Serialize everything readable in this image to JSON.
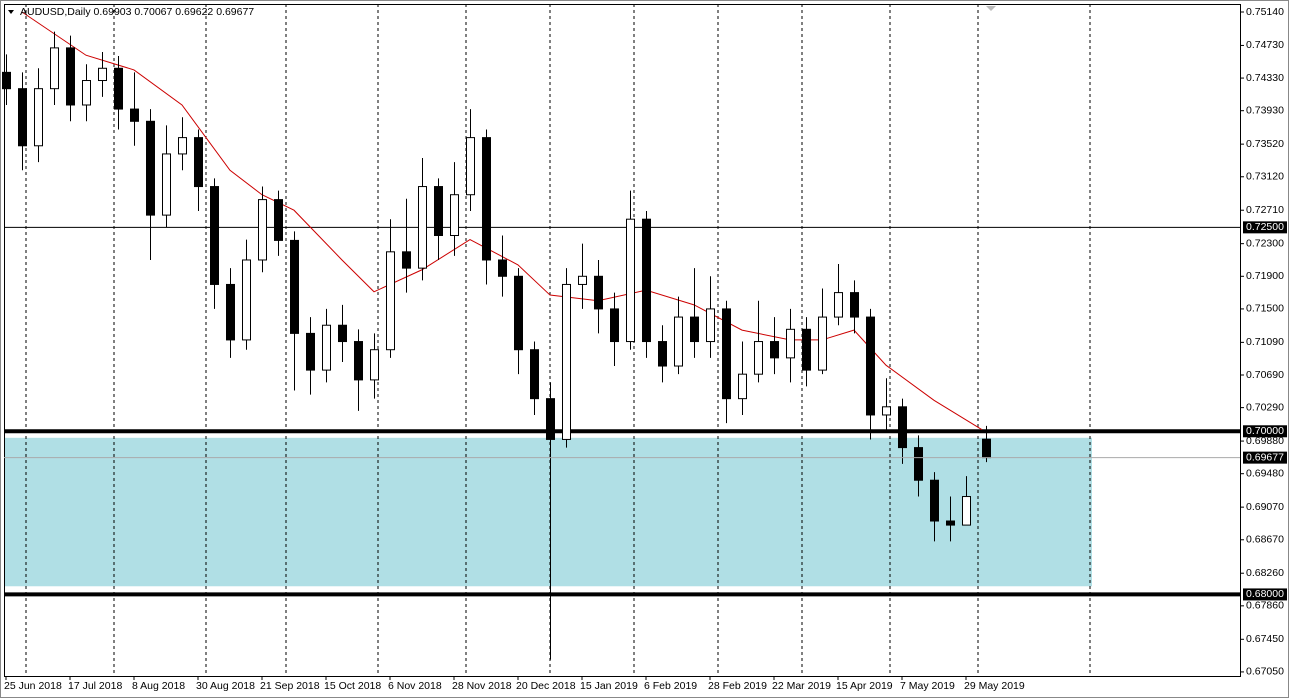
{
  "chart_data": {
    "type": "candlestick",
    "symbol": "AUDUSD,Daily",
    "ohlc": [
      0.69903,
      0.70067,
      0.69622,
      0.69677
    ],
    "xlim": [
      -0.5,
      308.5
    ],
    "ylim": [
      0.67,
      0.75238
    ],
    "yticks": [
      {
        "value": 0.7514,
        "label": "0.75140"
      },
      {
        "value": 0.7473,
        "label": "0.74730"
      },
      {
        "value": 0.7433,
        "label": "0.74330"
      },
      {
        "value": 0.7393,
        "label": "0.73930"
      },
      {
        "value": 0.7352,
        "label": "0.73520"
      },
      {
        "value": 0.7312,
        "label": "0.73120"
      },
      {
        "value": 0.7271,
        "label": "0.72710"
      },
      {
        "value": 0.723,
        "label": "0.72300"
      },
      {
        "value": 0.719,
        "label": "0.71900"
      },
      {
        "value": 0.715,
        "label": "0.71500"
      },
      {
        "value": 0.7109,
        "label": "0.71090"
      },
      {
        "value": 0.7069,
        "label": "0.70690"
      },
      {
        "value": 0.7029,
        "label": "0.70290"
      },
      {
        "value": 0.6988,
        "label": "0.69880"
      },
      {
        "value": 0.6948,
        "label": "0.69480"
      },
      {
        "value": 0.6907,
        "label": "0.69070"
      },
      {
        "value": 0.6867,
        "label": "0.68670"
      },
      {
        "value": 0.6826,
        "label": "0.68260"
      },
      {
        "value": 0.6786,
        "label": "0.67860"
      },
      {
        "value": 0.6745,
        "label": "0.67450"
      },
      {
        "value": 0.6705,
        "label": "0.67050"
      }
    ],
    "xticks": [
      {
        "value": 0,
        "label": "25 Jun 2018"
      },
      {
        "value": 16,
        "label": "17 Jul 2018"
      },
      {
        "value": 32,
        "label": "8 Aug 2018"
      },
      {
        "value": 48,
        "label": "30 Aug 2018"
      },
      {
        "value": 64,
        "label": "21 Sep 2018"
      },
      {
        "value": 80,
        "label": "15 Oct 2018"
      },
      {
        "value": 96,
        "label": "6 Nov 2018"
      },
      {
        "value": 112,
        "label": "28 Nov 2018"
      },
      {
        "value": 128,
        "label": "20 Dec 2018"
      },
      {
        "value": 144,
        "label": "15 Jan 2019"
      },
      {
        "value": 160,
        "label": "6 Feb 2019"
      },
      {
        "value": 176,
        "label": "28 Feb 2019"
      },
      {
        "value": 192,
        "label": "22 Mar 2019"
      },
      {
        "value": 208,
        "label": "15 Apr 2019"
      },
      {
        "value": 224,
        "label": "7 May 2019"
      },
      {
        "value": 240,
        "label": "29 May 2019"
      }
    ],
    "xgrid": [
      5,
      27,
      50,
      70,
      93,
      115,
      136,
      157,
      178,
      199,
      221,
      243,
      271
    ],
    "grid": true,
    "candles": {
      "x": [
        0,
        4,
        8,
        12,
        16,
        20,
        24,
        28,
        32,
        36,
        40,
        44,
        48,
        52,
        56,
        60,
        64,
        68,
        72,
        76,
        80,
        84,
        88,
        92,
        96,
        100,
        104,
        108,
        112,
        116,
        120,
        124,
        128,
        132,
        136,
        140,
        144,
        148,
        152,
        156,
        160,
        164,
        168,
        172,
        176,
        180,
        184,
        188,
        192,
        196,
        200,
        204,
        208,
        212,
        216,
        220,
        224,
        228,
        232,
        236,
        240,
        245
      ],
      "open": [
        0.744,
        0.742,
        0.735,
        0.742,
        0.747,
        0.74,
        0.743,
        0.7445,
        0.7395,
        0.738,
        0.7265,
        0.734,
        0.736,
        0.73,
        0.718,
        0.7112,
        0.721,
        0.7284,
        0.7234,
        0.712,
        0.7075,
        0.713,
        0.711,
        0.7063,
        0.71,
        0.722,
        0.72,
        0.73,
        0.724,
        0.729,
        0.736,
        0.721,
        0.719,
        0.71,
        0.704,
        0.699,
        0.718,
        0.719,
        0.715,
        0.711,
        0.726,
        0.711,
        0.708,
        0.714,
        0.711,
        0.715,
        0.704,
        0.707,
        0.711,
        0.709,
        0.7125,
        0.7075,
        0.714,
        0.717,
        0.714,
        0.702,
        0.703,
        0.698,
        0.694,
        0.689,
        0.6885,
        0.69903
      ],
      "high": [
        0.7462,
        0.744,
        0.7445,
        0.749,
        0.7485,
        0.745,
        0.7465,
        0.746,
        0.744,
        0.7395,
        0.7375,
        0.7385,
        0.737,
        0.731,
        0.72,
        0.7235,
        0.73,
        0.7295,
        0.7245,
        0.714,
        0.715,
        0.7155,
        0.7125,
        0.712,
        0.726,
        0.7285,
        0.7335,
        0.731,
        0.733,
        0.7395,
        0.737,
        0.724,
        0.72,
        0.711,
        0.706,
        0.72,
        0.723,
        0.721,
        0.717,
        0.7295,
        0.727,
        0.713,
        0.7165,
        0.72,
        0.719,
        0.716,
        0.711,
        0.716,
        0.714,
        0.715,
        0.714,
        0.7175,
        0.7205,
        0.7185,
        0.715,
        0.7065,
        0.704,
        0.6995,
        0.695,
        0.692,
        0.6945,
        0.70067
      ],
      "low": [
        0.74,
        0.732,
        0.733,
        0.74,
        0.738,
        0.738,
        0.741,
        0.737,
        0.735,
        0.721,
        0.725,
        0.732,
        0.727,
        0.715,
        0.709,
        0.71,
        0.7195,
        0.7215,
        0.705,
        0.7045,
        0.706,
        0.7085,
        0.7025,
        0.704,
        0.709,
        0.717,
        0.7185,
        0.721,
        0.7215,
        0.727,
        0.718,
        0.7165,
        0.707,
        0.702,
        0.672,
        0.698,
        0.715,
        0.712,
        0.708,
        0.71,
        0.709,
        0.706,
        0.707,
        0.709,
        0.709,
        0.701,
        0.702,
        0.706,
        0.707,
        0.706,
        0.7055,
        0.707,
        0.713,
        0.712,
        0.699,
        0.7,
        0.696,
        0.692,
        0.6865,
        0.6865,
        0.689,
        0.69622
      ],
      "close": [
        0.742,
        0.735,
        0.742,
        0.747,
        0.74,
        0.743,
        0.7445,
        0.7395,
        0.738,
        0.7265,
        0.734,
        0.736,
        0.73,
        0.718,
        0.7112,
        0.721,
        0.7284,
        0.7234,
        0.712,
        0.7075,
        0.713,
        0.711,
        0.7063,
        0.71,
        0.722,
        0.72,
        0.73,
        0.724,
        0.729,
        0.736,
        0.721,
        0.719,
        0.71,
        0.704,
        0.699,
        0.718,
        0.719,
        0.715,
        0.711,
        0.726,
        0.711,
        0.708,
        0.714,
        0.711,
        0.715,
        0.704,
        0.707,
        0.711,
        0.709,
        0.7125,
        0.7075,
        0.714,
        0.717,
        0.714,
        0.702,
        0.703,
        0.698,
        0.694,
        0.689,
        0.6885,
        0.692,
        0.69677
      ]
    },
    "moving_average": {
      "color": "#cc0000",
      "x": [
        4,
        20,
        32,
        44,
        56,
        64,
        72,
        84,
        92,
        104,
        116,
        128,
        136,
        148,
        160,
        172,
        184,
        196,
        204,
        212,
        220,
        232,
        244
      ],
      "values": [
        0.7514,
        0.7461,
        0.7443,
        0.74,
        0.732,
        0.729,
        0.7271,
        0.721,
        0.7171,
        0.7198,
        0.7235,
        0.7204,
        0.7167,
        0.716,
        0.7173,
        0.7155,
        0.7124,
        0.7112,
        0.7112,
        0.7124,
        0.7081,
        0.7038,
        0.7002
      ]
    },
    "zone": {
      "low": 0.681,
      "high": 0.6992,
      "x_end": 271.5,
      "color": "#b0dfe5"
    },
    "levels": [
      {
        "value": 0.725,
        "label": "0.72500",
        "style": "thin"
      },
      {
        "value": 0.7,
        "label": "0.70000",
        "style": "thick"
      },
      {
        "value": 0.68,
        "label": "0.68000",
        "style": "thick"
      }
    ],
    "last_price": 0.69677
  }
}
